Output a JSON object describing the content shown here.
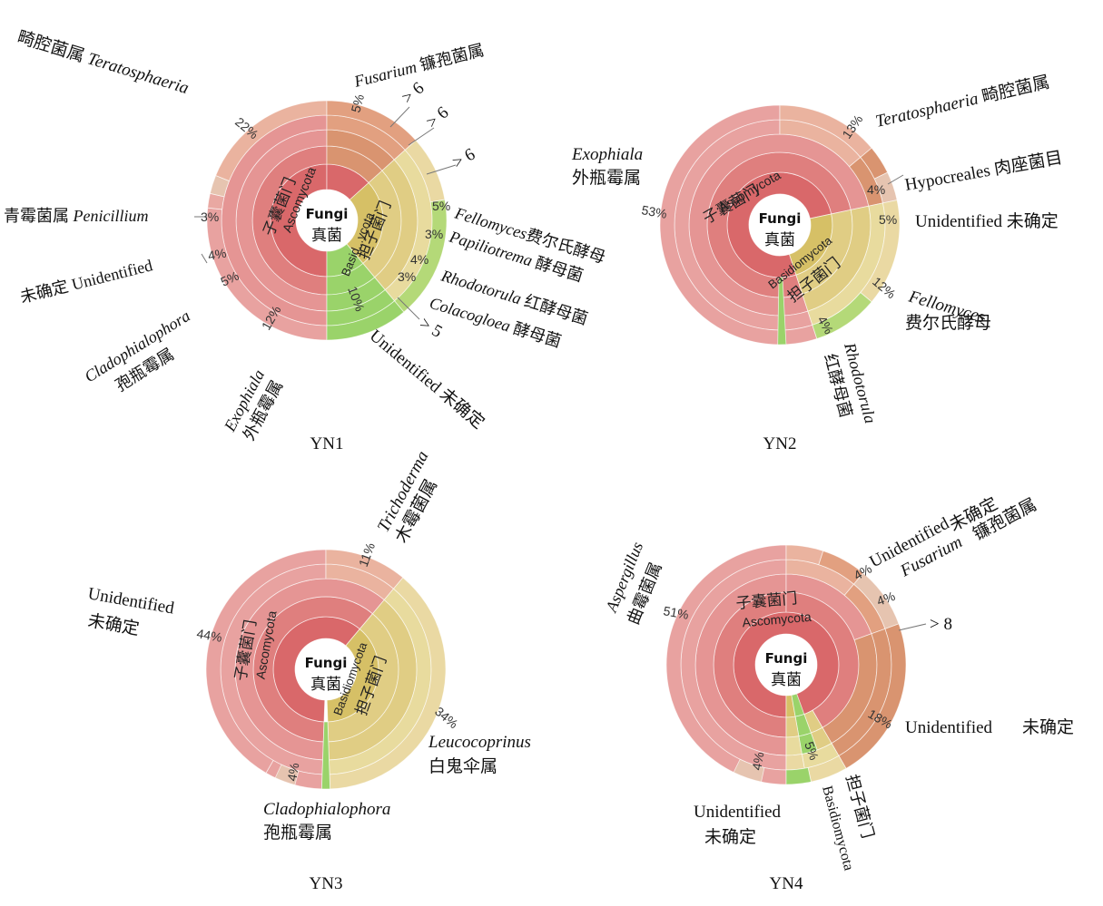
{
  "palette": {
    "asc1": "#d9686a",
    "asc2": "#df7f7e",
    "asc3": "#e59594",
    "asc4": "#e9a8a2",
    "ascOuter": "#e8a2a0",
    "teratosphaeria": "#eab39f",
    "fusarium": "#e2a080",
    "orange": "#d99470",
    "basid1": "#d6c066",
    "basid2": "#e0cd84",
    "basid3": "#e8db9e",
    "basidOuter": "#ead9a3",
    "green": "#9ad36a",
    "green2": "#b4d978",
    "unk": "#e6c4b0",
    "stroke": "#c9897f"
  },
  "chart_data": [
    {
      "type": "sunburst",
      "panel": "YN1",
      "center": {
        "top": "Fungi",
        "bottom": "真菌"
      },
      "phyla": [
        {
          "name_cn": "子囊菌门",
          "name_en": "Ascomycota",
          "fraction": 0.62
        },
        {
          "name_cn": "担子菌门",
          "name_en": "Basid...ycota",
          "fraction": 0.28
        },
        {
          "name": "Unidentified 未确定",
          "fraction": 0.1
        }
      ],
      "segments": [
        {
          "pct": "5%",
          "label_it": "Fusarium",
          "label_cn": "镰孢菌属"
        },
        {
          "pct": "",
          "label": "> 6"
        },
        {
          "pct": "",
          "label": "> 6"
        },
        {
          "pct": "",
          "label": "> 6"
        },
        {
          "pct": "5%",
          "label_it": "Fellomyces",
          "label_cn": "费尔氏酵母"
        },
        {
          "pct": "3%",
          "label_it": "Papiliotrema",
          "label_cn": "酵母菌"
        },
        {
          "pct": "4%",
          "label_it": "Rhodotorula",
          "label_cn": "红酵母菌"
        },
        {
          "pct": "3%",
          "label_it": "Colacogloea",
          "label_cn": "酵母菌"
        },
        {
          "pct": "",
          "label": "> 5"
        },
        {
          "pct": "10%",
          "label": "Unidentified",
          "label_cn": "未确定"
        },
        {
          "pct": "12%",
          "label_it": "Exophiala",
          "label_cn": "外瓶霉属"
        },
        {
          "pct": "5%",
          "label_it": "Cladophialophora",
          "label_cn": "孢瓶霉属"
        },
        {
          "pct": "4%",
          "label": "Unidentified",
          "label_cn": "未确定"
        },
        {
          "pct": "3%",
          "label_it": "Penicillium",
          "label_cn": "青霉菌属"
        },
        {
          "pct": "22%",
          "label_it": "Teratosphaeria",
          "label_cn": "畸腔菌属"
        }
      ]
    },
    {
      "type": "sunburst",
      "panel": "YN2",
      "center": {
        "top": "Fungi",
        "bottom": "真菌"
      },
      "phyla": [
        {
          "name_cn": "子囊菌门",
          "name_en": "Ascomycota",
          "fraction": 0.76
        },
        {
          "name_cn": "担子菌门",
          "name_en": "Basidiomycota",
          "fraction": 0.21
        }
      ],
      "segments": [
        {
          "pct": "13%",
          "label_it": "Teratosphaeria",
          "label_cn": "畸腔菌属"
        },
        {
          "pct": "4%",
          "label": "Hypocreales",
          "label_cn": "肉座菌目"
        },
        {
          "pct": "5%",
          "label": "Unidentified",
          "label_cn": "未确定"
        },
        {
          "pct": "12%",
          "label_it": "Fellomyces",
          "label_cn": "费尔氏酵母"
        },
        {
          "pct": "4%",
          "label_it": "Rhodotorula",
          "label_cn": "红酵母菌"
        },
        {
          "pct": "53%",
          "label_it": "Exophiala",
          "label_cn": "外瓶霉属"
        }
      ]
    },
    {
      "type": "sunburst",
      "panel": "YN3",
      "center": {
        "top": "Fungi",
        "bottom": "真菌"
      },
      "phyla": [
        {
          "name_cn": "子囊菌门",
          "name_en": "Ascomycota",
          "fraction": 0.62
        },
        {
          "name_cn": "担子菌门",
          "name_en": "Basidiomycota",
          "fraction": 0.36
        }
      ],
      "segments": [
        {
          "pct": "11%",
          "label_it": "Trichoderma",
          "label_cn": "木霉菌属"
        },
        {
          "pct": "34%",
          "label_it": "Leucocoprinus",
          "label_cn": "白鬼伞属"
        },
        {
          "pct": "4%",
          "label_it": "Cladophialophora",
          "label_cn": "孢瓶霉属"
        },
        {
          "pct": "44%",
          "label": "Unidentified",
          "label_cn": "未确定"
        }
      ]
    },
    {
      "type": "sunburst",
      "panel": "YN4",
      "center": {
        "top": "Fungi",
        "bottom": "真菌"
      },
      "phyla": [
        {
          "name_cn": "子囊菌门",
          "name_en": "Ascomycota",
          "fraction": 0.9
        },
        {
          "name_cn": "担子菌门",
          "name_en": "Basidiomycota",
          "fraction": 0.07
        }
      ],
      "segments": [
        {
          "pct": "4%",
          "label": "Unidentified",
          "label_cn": "未确定"
        },
        {
          "pct": "4%",
          "label_it": "Fusarium",
          "label_cn": "镰孢菌属"
        },
        {
          "pct": "",
          "label": "> 8"
        },
        {
          "pct": "18%",
          "label": "Unidentified",
          "label_cn": "未确定"
        },
        {
          "pct": "5%",
          "label": "担子菌门",
          "label_cn": "Basidiomycota"
        },
        {
          "pct": "4%",
          "label": "Unidentified",
          "label_cn": "未确定"
        },
        {
          "pct": "51%",
          "label_it": "Aspergillus",
          "label_cn": "曲霉菌属"
        }
      ]
    }
  ]
}
